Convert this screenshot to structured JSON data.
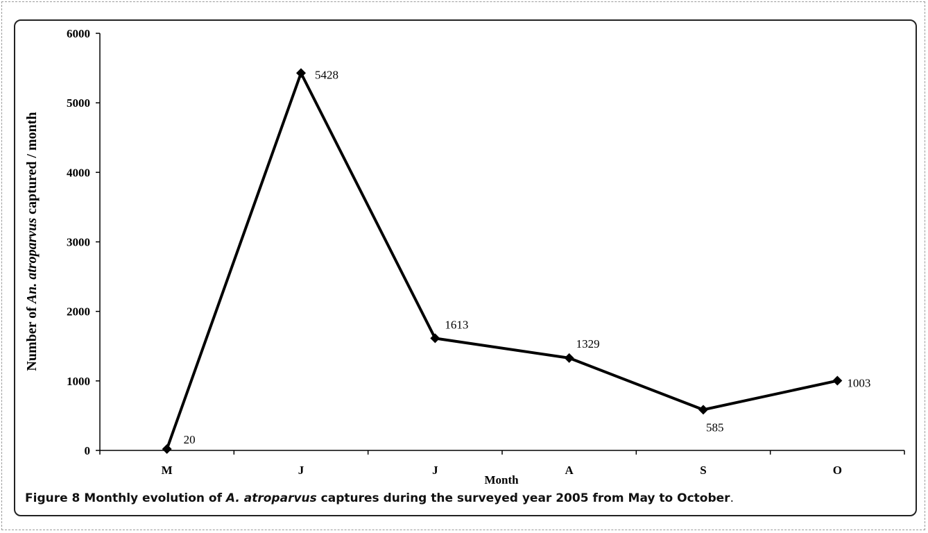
{
  "chart_data": {
    "type": "line",
    "categories": [
      "M",
      "J",
      "J",
      "A",
      "S",
      "O"
    ],
    "series": [
      {
        "values": [
          20,
          5428,
          1613,
          1329,
          585,
          1003
        ]
      }
    ],
    "data_labels": [
      "20",
      "5428",
      "1613",
      "1329",
      "585",
      "1003"
    ],
    "xlabel": "Month",
    "ylabel_parts": [
      "Number of ",
      "An. atroparvus",
      " captured / month"
    ],
    "ylim": [
      0,
      6000
    ],
    "yticks": [
      0,
      1000,
      2000,
      3000,
      4000,
      5000,
      6000
    ],
    "ytick_labels": [
      "0",
      "1000",
      "2000",
      "3000",
      "4000",
      "5000",
      "6000"
    ],
    "grid": false,
    "marker": "diamond",
    "line_color": "#000000"
  },
  "caption": {
    "label": "Figure 8",
    "text_before": " Monthly evolution of ",
    "text_italic": "A. atroparvus",
    "text_after": " captures during the surveyed year 2005 from May to October",
    "period": "."
  }
}
